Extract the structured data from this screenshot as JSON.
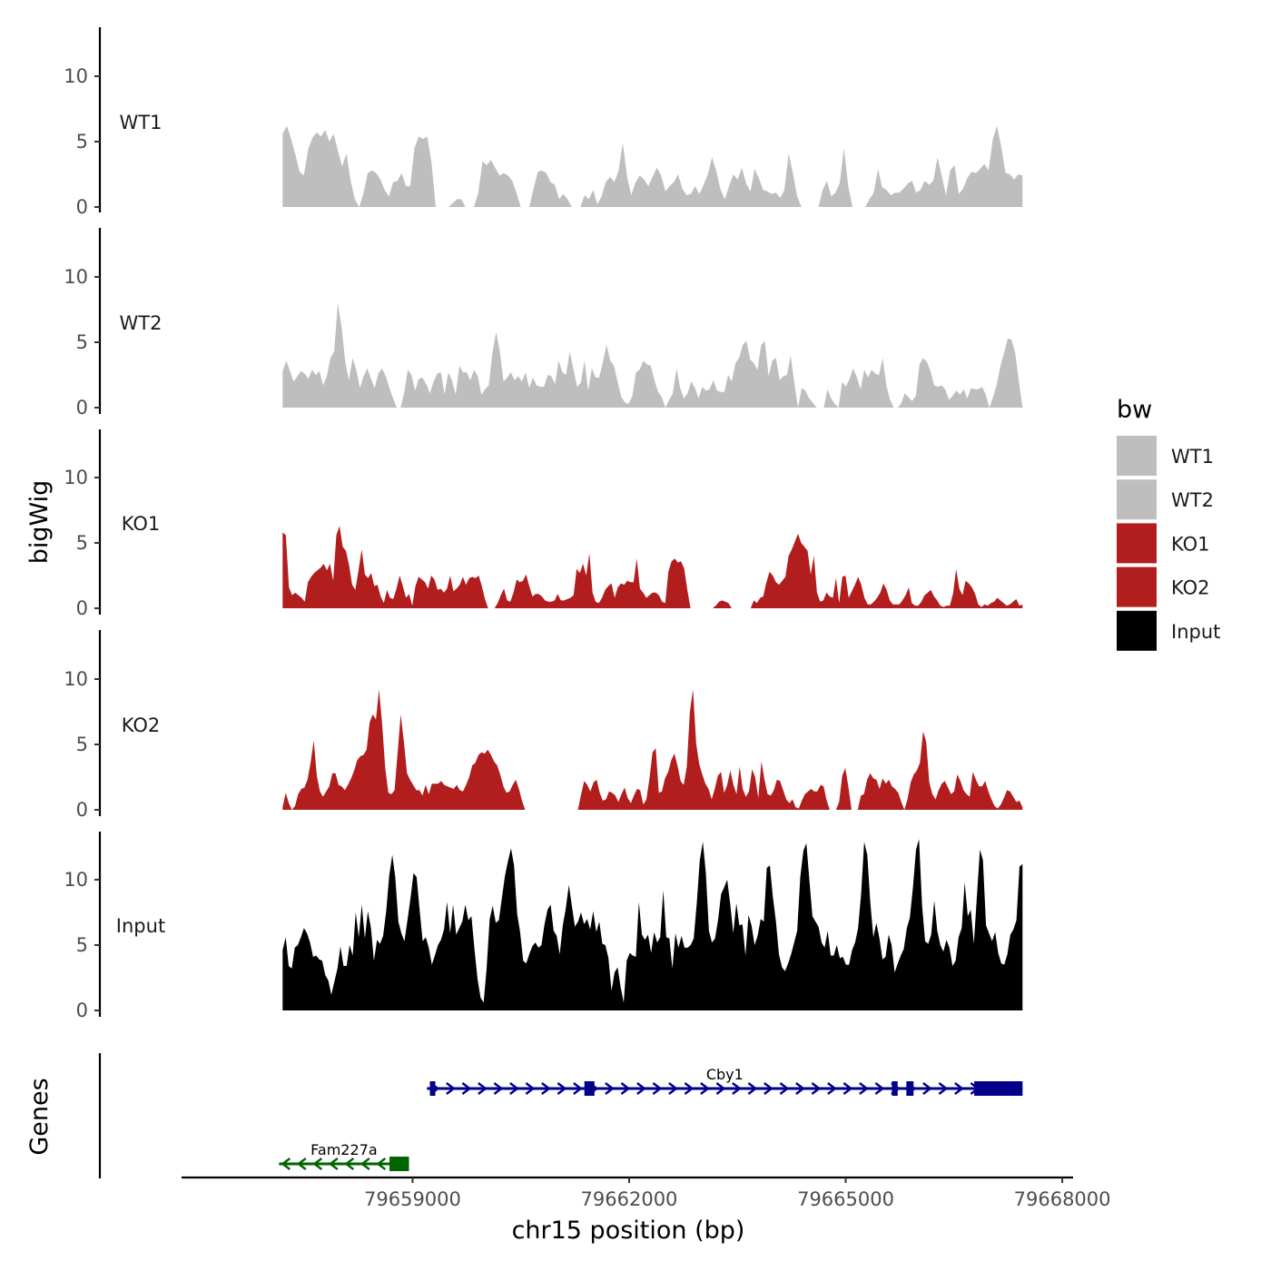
{
  "chart_data": {
    "type": "area",
    "chromosome": "chr15",
    "xlabel": "chr15 position (bp)",
    "ylabel_signal": "bigWig",
    "ylabel_genes": "Genes",
    "x_range": [
      79657200,
      79667450
    ],
    "xlim": [
      79655800,
      79668150
    ],
    "x_ticks": [
      79659000,
      79662000,
      79665000,
      79668000
    ],
    "x_tick_labels": [
      "79659000",
      "79662000",
      "79665000",
      "79668000"
    ],
    "ylim": [
      0,
      13.5
    ],
    "y_ticks": [
      0,
      5,
      10
    ],
    "y_tick_labels": [
      "0",
      "5",
      "10"
    ],
    "legend": {
      "title": "bw",
      "entries": [
        {
          "label": "WT1",
          "color": "#bebebe"
        },
        {
          "label": "WT2",
          "color": "#bebebe"
        },
        {
          "label": "KO1",
          "color": "#b21d1d"
        },
        {
          "label": "KO2",
          "color": "#b21d1d"
        },
        {
          "label": "Input",
          "color": "#000000"
        }
      ]
    },
    "tracks": [
      {
        "name": "WT1",
        "color": "#bebebe",
        "values": [
          5.6,
          6.2,
          5.2,
          4.0,
          2.7,
          2.4,
          4.4,
          5.3,
          5.7,
          5.4,
          5.9,
          5.0,
          5.6,
          4.3,
          3.1,
          4.1,
          2.0,
          0.6,
          0,
          1.0,
          2.6,
          2.8,
          2.6,
          2.1,
          1.3,
          0.8,
          1.9,
          2.0,
          2.6,
          1.6,
          1.6,
          4.5,
          5.4,
          5.2,
          5.4,
          3.4,
          0,
          0,
          0,
          0,
          0.3,
          0.6,
          0.6,
          0,
          0,
          0,
          1.1,
          3.5,
          3.2,
          3.6,
          3.0,
          2.4,
          2.6,
          2.4,
          2.0,
          1.1,
          0,
          0,
          0,
          1.4,
          2.7,
          2.8,
          2.6,
          1.9,
          1.7,
          0.6,
          1.0,
          0.6,
          0,
          0,
          0,
          0.9,
          0.6,
          1.3,
          0.2,
          0.8,
          1.9,
          2.3,
          1.9,
          2.8,
          4.9,
          2.3,
          0.9,
          1.9,
          2.4,
          2.1,
          1.6,
          2.3,
          3.0,
          2.4,
          1.2,
          1.6,
          1.9,
          2.5,
          1.4,
          0.9,
          1.0,
          1.6,
          1.0,
          1.7,
          2.5,
          3.8,
          2.7,
          1.3,
          0.6,
          1.6,
          2.5,
          2.1,
          3.0,
          1.8,
          1.2,
          2.9,
          2.2,
          1.3,
          1.2,
          1.0,
          1.1,
          0.7,
          1.3,
          4.1,
          2.6,
          0.8,
          0,
          0,
          0,
          0,
          0,
          1.3,
          2.0,
          0.8,
          1.1,
          1.8,
          4.5,
          1.6,
          0,
          0,
          0,
          0,
          0.6,
          1.1,
          2.9,
          1.5,
          1.3,
          0.9,
          1.1,
          1.1,
          1.4,
          1.8,
          2.0,
          1.1,
          1.3,
          2.0,
          1.7,
          2.0,
          3.8,
          2.4,
          0.9,
          2.8,
          3.2,
          1.0,
          1.4,
          2.2,
          2.7,
          2.6,
          2.9,
          3.3,
          2.8,
          5.2,
          6.2,
          4.6,
          2.6,
          2.5,
          2.1,
          2.5,
          2.4
        ]
      },
      {
        "name": "WT2",
        "color": "#bebebe",
        "values": [
          2.8,
          3.6,
          2.8,
          2.0,
          2.4,
          2.8,
          2.6,
          2.2,
          2.9,
          2.5,
          2.8,
          1.7,
          2.4,
          3.8,
          4.3,
          8.0,
          6.2,
          3.5,
          2.1,
          3.8,
          2.9,
          1.5,
          2.4,
          3.0,
          2.2,
          1.5,
          2.6,
          3.0,
          2.4,
          1.5,
          0.7,
          0,
          0,
          1.1,
          2.9,
          2.5,
          1.3,
          2.2,
          2.3,
          1.8,
          1.1,
          2.0,
          2.6,
          2.7,
          1.0,
          2.7,
          2.1,
          1.0,
          3.2,
          2.7,
          2.7,
          2.1,
          2.9,
          2.4,
          1.0,
          1.4,
          1.7,
          4.2,
          5.8,
          4.3,
          2.0,
          2.3,
          2.7,
          2.1,
          2.4,
          2.0,
          2.7,
          1.5,
          2.3,
          1.7,
          1.6,
          1.6,
          2.5,
          2.4,
          1.8,
          3.6,
          2.7,
          2.5,
          4.3,
          2.9,
          1.6,
          1.9,
          3.6,
          1.3,
          3.0,
          2.3,
          2.3,
          3.5,
          4.8,
          3.6,
          3.2,
          2.0,
          0.8,
          0.4,
          0.3,
          0.9,
          2.7,
          2.9,
          3.6,
          3.3,
          3.2,
          2.1,
          1.2,
          0.8,
          0,
          0.6,
          1.1,
          3.0,
          1.5,
          0.7,
          1.1,
          2.0,
          1.5,
          0.7,
          1.6,
          1.3,
          1.4,
          2.1,
          1.3,
          1.2,
          1.2,
          2.5,
          2.0,
          3.4,
          3.8,
          4.8,
          5.1,
          3.7,
          3.4,
          2.9,
          4.8,
          5.1,
          2.4,
          3.6,
          3.8,
          2.1,
          2.4,
          2.5,
          4.0,
          1.9,
          0,
          1.5,
          1.3,
          0.7,
          0.4,
          0,
          0,
          0,
          1.4,
          0.7,
          0.3,
          0,
          2.0,
          1.6,
          2.2,
          3.0,
          2.3,
          1.4,
          2.9,
          2.3,
          2.9,
          2.6,
          2.5,
          3.8,
          1.7,
          0.6,
          0,
          0,
          0.3,
          1.1,
          0.8,
          0.5,
          0.9,
          3.3,
          3.8,
          3.5,
          2.8,
          1.7,
          1.6,
          1.7,
          1.4,
          0.6,
          0.9,
          1.3,
          1.0,
          1.4,
          0.7,
          1.5,
          1.4,
          1.4,
          1.6,
          1.0,
          0,
          0.8,
          1.8,
          3.2,
          4.2,
          5.3,
          5.2,
          4.2,
          2.0,
          0
        ]
      },
      {
        "name": "KO1",
        "color": "#b21d1d",
        "values": [
          5.8,
          5.6,
          1.6,
          1.0,
          1.2,
          1.0,
          0.8,
          0.5,
          2.0,
          2.4,
          2.7,
          2.9,
          3.1,
          3.4,
          2.9,
          3.4,
          2.1,
          5.6,
          6.3,
          4.7,
          4.4,
          3.3,
          1.8,
          1.4,
          2.9,
          4.5,
          2.6,
          2.3,
          2.7,
          1.7,
          1.8,
          0.9,
          0.4,
          1.4,
          0.8,
          0.7,
          1.5,
          2.5,
          1.7,
          0.8,
          1.1,
          0.2,
          1.7,
          2.4,
          2.2,
          2.0,
          1.5,
          2.5,
          2.2,
          1.4,
          1.5,
          1.2,
          1.5,
          2.5,
          1.3,
          1.5,
          1.8,
          2.4,
          1.8,
          2.3,
          2.4,
          2.3,
          2.5,
          1.7,
          0.7,
          0,
          0,
          0,
          0.4,
          1.0,
          1.5,
          0.6,
          0.5,
          1.2,
          2.2,
          2.0,
          2.1,
          2.6,
          1.7,
          0.9,
          1.1,
          1.1,
          0.9,
          0.6,
          0.5,
          0.5,
          0.6,
          1.1,
          0.6,
          0.6,
          0.7,
          0.8,
          1.0,
          3.0,
          2.7,
          3.4,
          2.5,
          4.2,
          1.2,
          0.5,
          0.4,
          0.8,
          1.4,
          1.7,
          1.9,
          0.8,
          1.6,
          1.9,
          1.8,
          2.1,
          2.0,
          2.0,
          3.8,
          1.5,
          1.2,
          0.8,
          1.0,
          1.2,
          1.2,
          1.0,
          0.5,
          0.4,
          2.8,
          3.6,
          3.8,
          3.5,
          3.6,
          3.0,
          1.4,
          0,
          0,
          0,
          0,
          0,
          0,
          0,
          0,
          0.2,
          0.5,
          0.6,
          0.5,
          0.4,
          0,
          0,
          0,
          0,
          0,
          0,
          0,
          0.6,
          0.4,
          0.8,
          0.9,
          2.0,
          2.8,
          2.5,
          2.0,
          1.8,
          2.1,
          2.4,
          4.0,
          4.5,
          5.1,
          5.7,
          5.0,
          4.7,
          4.4,
          2.6,
          4.0,
          1.2,
          0.5,
          0.6,
          1.2,
          0.9,
          0.8,
          2.3,
          0.4,
          2.4,
          2.5,
          0.8,
          1.3,
          1.8,
          2.4,
          1.8,
          0.8,
          0.3,
          0.3,
          0.5,
          0.8,
          1.2,
          1.9,
          1.4,
          0.6,
          0.3,
          0.3,
          0.3,
          0.6,
          1.0,
          1.6,
          0.4,
          0.2,
          0.2,
          0.5,
          1.0,
          1.2,
          1.4,
          0.9,
          0.6,
          0.2,
          0.1,
          0.2,
          0.2,
          1.1,
          3.0,
          1.5,
          1.0,
          2.1,
          1.9,
          1.6,
          1.1,
          0.3,
          0.1,
          0.3,
          0.2,
          0.4,
          0.5,
          0.8,
          0.6,
          0.4,
          0.2,
          0.3,
          0.5,
          0.7,
          0.2,
          0.3
        ]
      },
      {
        "name": "KO2",
        "color": "#b21d1d",
        "values": [
          0.2,
          1.3,
          0.5,
          0,
          0.3,
          1.2,
          1.6,
          1.7,
          2.3,
          3.6,
          5.3,
          2.6,
          1.4,
          1.0,
          1.4,
          1.8,
          2.8,
          2.8,
          1.9,
          1.8,
          1.5,
          1.9,
          2.4,
          3.0,
          3.8,
          4.1,
          4.2,
          4.6,
          6.7,
          7.3,
          6.9,
          9.2,
          6.6,
          3.2,
          1.3,
          1.2,
          1.5,
          4.4,
          7.3,
          5.2,
          2.8,
          2.3,
          1.9,
          1.5,
          1.5,
          1.1,
          1.9,
          1.2,
          2.0,
          2.0,
          2.0,
          2.2,
          1.9,
          1.8,
          1.7,
          1.6,
          1.9,
          1.5,
          1.4,
          1.9,
          2.5,
          3.4,
          3.6,
          4.2,
          4.4,
          4.3,
          4.6,
          4.2,
          3.7,
          3.4,
          2.7,
          1.8,
          1.3,
          1.4,
          1.9,
          2.3,
          1.6,
          0.7,
          0,
          0,
          0,
          0,
          0,
          0,
          0,
          0,
          0,
          0,
          0,
          0,
          0,
          0,
          0,
          0,
          0,
          0,
          1.2,
          2.2,
          1.9,
          1.4,
          2.1,
          2.3,
          1.3,
          0.7,
          0.8,
          1.4,
          1.3,
          1.1,
          0.6,
          1.2,
          1.7,
          0.9,
          0.5,
          1.1,
          1.6,
          1.5,
          0.4,
          0.8,
          2.4,
          4.4,
          4.7,
          1.3,
          1.4,
          2.4,
          2.9,
          3.8,
          4.3,
          3.4,
          2.2,
          1.9,
          3.3,
          7.5,
          9.2,
          5.1,
          3.5,
          2.7,
          2.0,
          1.6,
          0.8,
          1.6,
          2.6,
          2.9,
          1.3,
          1.9,
          3.0,
          1.9,
          1.2,
          3.3,
          1.6,
          1.0,
          1.4,
          3.1,
          2.5,
          0.9,
          3.7,
          2.3,
          1.2,
          1.1,
          1.5,
          2.3,
          2.2,
          1.5,
          0.8,
          0.5,
          0.8,
          0.2,
          0.1,
          0.7,
          1.2,
          1.4,
          1.6,
          1.4,
          1.4,
          1.9,
          1.8,
          0.7,
          0,
          0,
          0,
          0.6,
          2.6,
          3.2,
          1.7,
          0,
          0,
          0,
          1.1,
          1.2,
          2.3,
          2.8,
          2.4,
          2.3,
          1.6,
          2.4,
          2.0,
          2.3,
          1.8,
          1.6,
          1.3,
          0.6,
          0,
          0.8,
          2.1,
          2.7,
          3.0,
          3.6,
          6.0,
          5.2,
          2.1,
          1.2,
          0.8,
          1.5,
          2.0,
          2.2,
          1.7,
          1.2,
          1.4,
          2.7,
          2.2,
          1.5,
          1.2,
          1.0,
          2.9,
          2.3,
          1.8,
          1.8,
          2.2,
          1.4,
          0.8,
          0.3,
          0.1,
          0.4,
          0.9,
          1.5,
          1.4,
          1.0,
          0.6,
          0.7,
          0.2
        ]
      },
      {
        "name": "Input",
        "color": "#000000",
        "values": [
          4.6,
          5.6,
          3.4,
          3.2,
          4.8,
          5.0,
          5.6,
          6.3,
          5.9,
          5.2,
          4.1,
          4.2,
          3.9,
          3.8,
          2.7,
          2.3,
          1.2,
          2.2,
          3.2,
          4.9,
          3.4,
          3.4,
          5.0,
          4.2,
          7.5,
          5.6,
          8.1,
          5.5,
          7.6,
          6.3,
          3.8,
          5.4,
          5.1,
          5.7,
          7.6,
          10.3,
          11.9,
          10.2,
          6.8,
          5.9,
          5.3,
          6.9,
          8.6,
          10.5,
          10.2,
          7.7,
          5.3,
          5.6,
          4.8,
          3.5,
          4.2,
          5.0,
          5.4,
          6.2,
          8.3,
          5.9,
          8.1,
          5.8,
          6.3,
          6.8,
          8.1,
          6.9,
          7.2,
          4.7,
          2.4,
          1.0,
          0.6,
          3.2,
          7.0,
          8.0,
          6.7,
          6.9,
          8.6,
          10.3,
          11.4,
          12.4,
          11.1,
          7.4,
          6.0,
          3.8,
          3.6,
          4.3,
          4.9,
          5.2,
          4.8,
          5.0,
          6.6,
          7.7,
          8.1,
          6.1,
          5.7,
          4.3,
          6.5,
          7.8,
          9.6,
          8.0,
          6.4,
          6.8,
          7.5,
          6.6,
          7.0,
          6.2,
          7.6,
          6.0,
          6.8,
          5.1,
          5.0,
          4.0,
          1.5,
          2.9,
          3.3,
          1.8,
          0.6,
          3.8,
          4.4,
          4.2,
          4.1,
          8.3,
          5.8,
          5.4,
          5.8,
          4.4,
          6.0,
          5.2,
          5.6,
          9.2,
          5.6,
          5.5,
          3.2,
          5.9,
          4.8,
          5.7,
          4.8,
          4.8,
          5.0,
          5.5,
          8.2,
          11.5,
          12.9,
          10.5,
          6.1,
          5.2,
          5.5,
          6.9,
          8.9,
          9.4,
          10.0,
          8.1,
          5.9,
          8.2,
          6.5,
          6.6,
          4.2,
          7.3,
          6.5,
          5.0,
          5.7,
          7.0,
          6.8,
          10.9,
          11.1,
          8.7,
          6.8,
          4.3,
          3.3,
          3.0,
          3.6,
          4.3,
          5.2,
          6.1,
          10.2,
          12.2,
          12.8,
          9.9,
          7.2,
          6.8,
          6.4,
          5.2,
          4.8,
          6.1,
          4.2,
          4.2,
          5.0,
          4.0,
          4.1,
          3.5,
          3.5,
          4.6,
          5.2,
          6.3,
          9.0,
          12.9,
          11.9,
          8.3,
          5.6,
          6.7,
          5.5,
          3.9,
          4.1,
          5.8,
          5.0,
          2.9,
          3.6,
          4.2,
          4.7,
          6.3,
          7.1,
          9.4,
          12.3,
          13.1,
          8.0,
          5.3,
          5.1,
          5.8,
          8.4,
          6.1,
          5.0,
          4.5,
          5.4,
          4.8,
          3.4,
          3.8,
          5.6,
          6.3,
          9.8,
          7.2,
          7.7,
          5.1,
          8.7,
          12.3,
          11.5,
          6.5,
          5.9,
          5.3,
          6.0,
          4.4,
          3.6,
          3.5,
          4.3,
          5.8,
          6.2,
          6.9,
          11.0,
          11.2
        ]
      }
    ],
    "genes": [
      {
        "name": "Cby1",
        "strand": "+",
        "color": "#00008b",
        "start": 79659200,
        "end": 79667450,
        "exons": [
          [
            79659240,
            79659290
          ],
          [
            79661380,
            79661520
          ],
          [
            79665640,
            79665720
          ],
          [
            79665840,
            79665940
          ],
          [
            79666780,
            79667450
          ]
        ]
      },
      {
        "name": "Fam227a",
        "strand": "-",
        "color": "#006400",
        "start": 79657150,
        "end": 79658950,
        "exons": [
          [
            79658680,
            79658950
          ]
        ]
      }
    ]
  }
}
